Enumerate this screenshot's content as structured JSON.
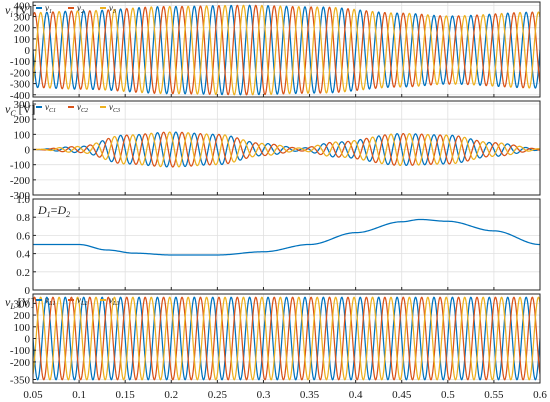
{
  "colors": {
    "series_1": "#0072BD",
    "series_2": "#D95319",
    "series_3": "#EDB120"
  },
  "chart_data": [
    {
      "type": "line",
      "ylabel_sym": "v",
      "ylabel_sub": "i",
      "ylabel_unit": "[V]",
      "xlim": [
        0.05,
        0.6
      ],
      "ylim": [
        -420,
        430
      ],
      "yticks": [
        400,
        300,
        200,
        100,
        0,
        -100,
        -200,
        -300,
        -400
      ],
      "grid": true,
      "legend_position": "top-left",
      "series": [
        {
          "name_sym": "v",
          "name_sub": "1",
          "phase": 0
        },
        {
          "name_sym": "v",
          "name_sub": "2",
          "phase": -120
        },
        {
          "name_sym": "v",
          "name_sub": "3",
          "phase": 120
        }
      ],
      "frequency_hz": 50,
      "envelope": {
        "t": [
          0.05,
          0.1,
          0.2,
          0.28,
          0.36,
          0.45,
          0.5,
          0.6
        ],
        "amplitude": [
          335,
          350,
          390,
          400,
          385,
          330,
          305,
          340
        ]
      }
    },
    {
      "type": "line",
      "ylabel_sym": "v",
      "ylabel_sub": "C",
      "ylabel_unit": "[V]",
      "xlim": [
        0.05,
        0.6
      ],
      "ylim": [
        -300,
        320
      ],
      "yticks": [
        300,
        200,
        100,
        0,
        -100,
        -200,
        -300
      ],
      "grid": true,
      "legend_position": "top-left",
      "series": [
        {
          "name_sym": "v",
          "name_sub": "C1",
          "phase": 0
        },
        {
          "name_sym": "v",
          "name_sub": "C2",
          "phase": -120
        },
        {
          "name_sym": "v",
          "name_sub": "C3",
          "phase": 120
        }
      ],
      "frequency_hz": 50,
      "envelope": {
        "t": [
          0.05,
          0.1,
          0.15,
          0.2,
          0.25,
          0.3,
          0.34,
          0.38,
          0.45,
          0.5,
          0.55,
          0.6
        ],
        "amplitude": [
          0,
          20,
          95,
          115,
          100,
          40,
          10,
          50,
          105,
          95,
          45,
          5
        ]
      }
    },
    {
      "type": "line",
      "ylabel_sym": "",
      "ylabel_sub": "",
      "ylabel_unit": "",
      "annotation": {
        "a_sym": "D",
        "a_sub": "1",
        "eq": "=",
        "b_sym": "D",
        "b_sub": "2"
      },
      "xlim": [
        0.05,
        0.6
      ],
      "ylim": [
        0,
        1
      ],
      "yticks": [
        1.0,
        0.8,
        0.6,
        0.4,
        0.2,
        0
      ],
      "ytick_labels": [
        "1.0",
        "0.8",
        "0.6",
        "0.4",
        "0.2",
        "0"
      ],
      "grid": true,
      "series": [
        {
          "name": "",
          "x": [
            0.05,
            0.1,
            0.13,
            0.16,
            0.2,
            0.25,
            0.3,
            0.35,
            0.4,
            0.45,
            0.47,
            0.5,
            0.55,
            0.6
          ],
          "y": [
            0.5,
            0.5,
            0.44,
            0.405,
            0.385,
            0.385,
            0.42,
            0.5,
            0.63,
            0.75,
            0.775,
            0.755,
            0.65,
            0.5
          ]
        }
      ]
    },
    {
      "type": "line",
      "ylabel_sym": "v",
      "ylabel_sub": "L",
      "ylabel_unit": "[V]",
      "xlim": [
        0.05,
        0.6
      ],
      "ylim": [
        -380,
        380
      ],
      "yticks": [
        300,
        200,
        100,
        0,
        -100,
        -200,
        -350
      ],
      "grid": true,
      "legend_position": "top-left",
      "series": [
        {
          "name_sym": "v",
          "name_sub": "L1",
          "phase": 0
        },
        {
          "name_sym": "v",
          "name_sub": "L2",
          "phase": -120
        },
        {
          "name_sym": "v",
          "name_sub": "L3",
          "phase": 120
        }
      ],
      "frequency_hz": 50,
      "envelope": {
        "t": [
          0.05,
          0.6
        ],
        "amplitude": [
          352,
          352
        ]
      },
      "xticks": [
        0.05,
        0.1,
        0.15,
        0.2,
        0.25,
        0.3,
        0.35,
        0.4,
        0.45,
        0.5,
        0.55,
        0.6
      ],
      "xtick_labels": [
        "0.05",
        "0.1",
        "0.15",
        "0.2",
        "0.25",
        "0.3",
        "0.35",
        "0.4",
        "0.45",
        "0.5",
        "0.55",
        "0.6"
      ]
    }
  ]
}
